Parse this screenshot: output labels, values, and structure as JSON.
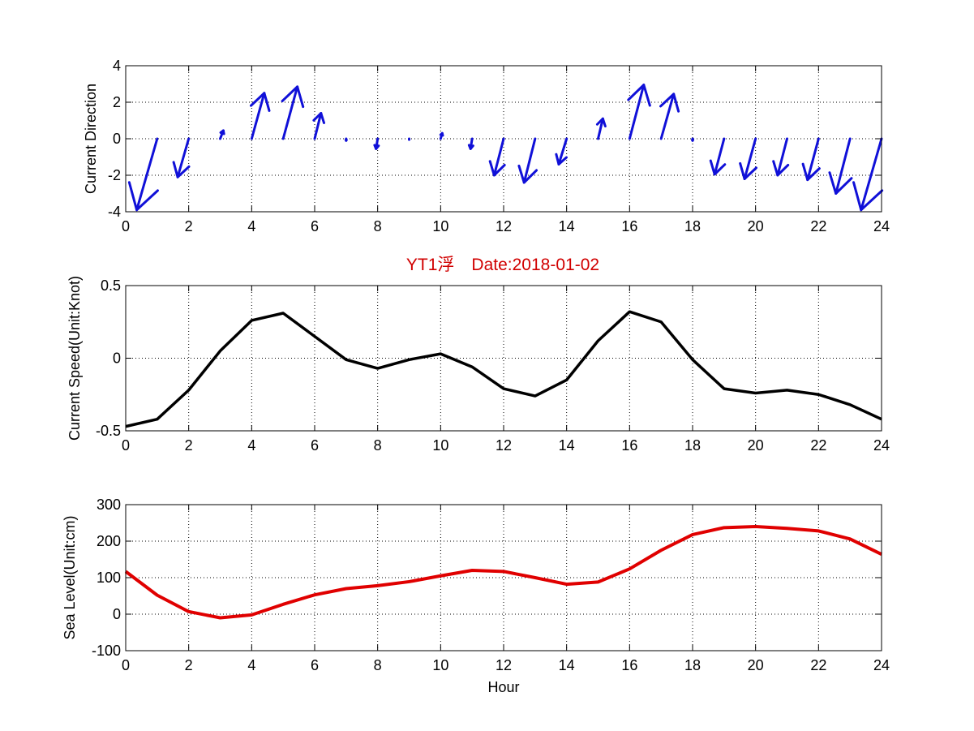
{
  "title": "YT1浮　Date:2018-01-02",
  "colors": {
    "title": "#d10000",
    "direction": "#1010d8",
    "speed": "#000000",
    "level": "#e00000"
  },
  "chart_data": [
    {
      "type": "quiver",
      "ylabel": "Current Direction",
      "xlim": [
        0,
        24
      ],
      "ylim": [
        -4,
        4
      ],
      "xticks": [
        0,
        2,
        4,
        6,
        8,
        10,
        12,
        14,
        16,
        18,
        20,
        22,
        24
      ],
      "yticks": [
        -4,
        -2,
        0,
        2,
        4
      ],
      "grid": true,
      "arrows": [
        {
          "x": 1,
          "dx": -0.65,
          "dy": -3.9
        },
        {
          "x": 2,
          "dx": -0.35,
          "dy": -2.1
        },
        {
          "x": 3,
          "dx": 0.1,
          "dy": 0.45
        },
        {
          "x": 4,
          "dx": 0.4,
          "dy": 2.5
        },
        {
          "x": 5,
          "dx": 0.45,
          "dy": 2.85
        },
        {
          "x": 6,
          "dx": 0.2,
          "dy": 1.4
        },
        {
          "x": 7,
          "dx": 0.0,
          "dy": -0.1
        },
        {
          "x": 8,
          "dx": -0.05,
          "dy": -0.55
        },
        {
          "x": 9,
          "dx": 0.0,
          "dy": -0.05
        },
        {
          "x": 10,
          "dx": 0.05,
          "dy": 0.3
        },
        {
          "x": 11,
          "dx": -0.05,
          "dy": -0.55
        },
        {
          "x": 12,
          "dx": -0.3,
          "dy": -2.0
        },
        {
          "x": 13,
          "dx": -0.35,
          "dy": -2.4
        },
        {
          "x": 14,
          "dx": -0.25,
          "dy": -1.4
        },
        {
          "x": 15,
          "dx": 0.15,
          "dy": 1.1
        },
        {
          "x": 16,
          "dx": 0.45,
          "dy": 2.95
        },
        {
          "x": 17,
          "dx": 0.4,
          "dy": 2.45
        },
        {
          "x": 18,
          "dx": 0.0,
          "dy": -0.1
        },
        {
          "x": 19,
          "dx": -0.3,
          "dy": -1.95
        },
        {
          "x": 20,
          "dx": -0.35,
          "dy": -2.2
        },
        {
          "x": 21,
          "dx": -0.3,
          "dy": -2.0
        },
        {
          "x": 22,
          "dx": -0.35,
          "dy": -2.25
        },
        {
          "x": 23,
          "dx": -0.45,
          "dy": -3.0
        },
        {
          "x": 24,
          "dx": -0.65,
          "dy": -3.9
        }
      ]
    },
    {
      "type": "line",
      "ylabel": "Current Speed(Unit:Knot)",
      "xlim": [
        0,
        24
      ],
      "ylim": [
        -0.5,
        0.5
      ],
      "xticks": [
        0,
        2,
        4,
        6,
        8,
        10,
        12,
        14,
        16,
        18,
        20,
        22,
        24
      ],
      "yticks": [
        -0.5,
        0,
        0.5
      ],
      "grid": true,
      "x": [
        0,
        1,
        2,
        3,
        4,
        5,
        6,
        7,
        8,
        9,
        10,
        11,
        12,
        13,
        14,
        15,
        16,
        17,
        18,
        19,
        20,
        21,
        22,
        23,
        24
      ],
      "y": [
        -0.47,
        -0.42,
        -0.22,
        0.05,
        0.26,
        0.31,
        0.15,
        -0.01,
        -0.07,
        -0.01,
        0.03,
        -0.06,
        -0.21,
        -0.26,
        -0.15,
        0.12,
        0.32,
        0.25,
        -0.01,
        -0.21,
        -0.24,
        -0.22,
        -0.25,
        -0.32,
        -0.42
      ]
    },
    {
      "type": "line",
      "ylabel": "Sea Level(Unit:cm)",
      "xlabel": "Hour",
      "xlim": [
        0,
        24
      ],
      "ylim": [
        -100,
        300
      ],
      "xticks": [
        0,
        2,
        4,
        6,
        8,
        10,
        12,
        14,
        16,
        18,
        20,
        22,
        24
      ],
      "yticks": [
        -100,
        0,
        100,
        200,
        300
      ],
      "grid": true,
      "x": [
        0,
        1,
        2,
        3,
        4,
        5,
        6,
        7,
        8,
        9,
        10,
        11,
        12,
        13,
        14,
        15,
        16,
        17,
        18,
        19,
        20,
        21,
        22,
        23,
        24
      ],
      "y": [
        117,
        52,
        7,
        -10,
        -2,
        27,
        53,
        70,
        78,
        89,
        105,
        120,
        117,
        100,
        82,
        88,
        124,
        175,
        218,
        237,
        240,
        235,
        228,
        206,
        164
      ]
    }
  ]
}
